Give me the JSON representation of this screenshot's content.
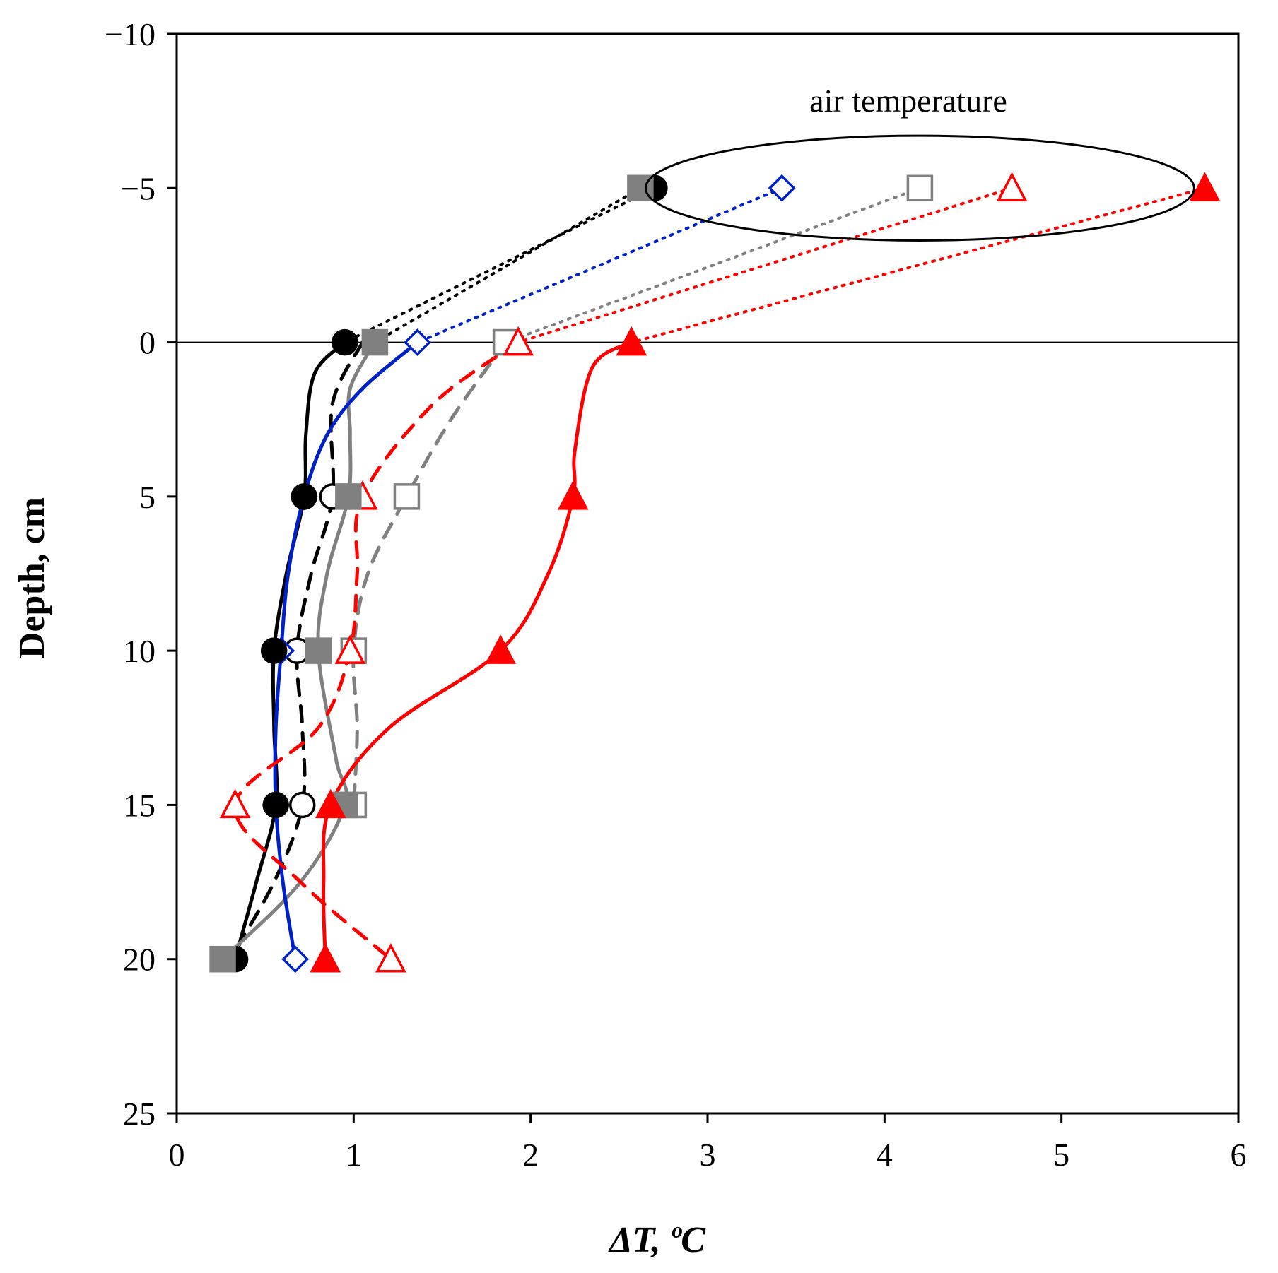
{
  "chart_data": {
    "type": "scatter",
    "title": "",
    "xlabel": "ΔT, ºC",
    "ylabel": "Depth, cm",
    "xlim": [
      0,
      6
    ],
    "ylim": [
      -10,
      25
    ],
    "y_inverted": true,
    "x_ticks": [
      "0",
      "1",
      "2",
      "3",
      "4",
      "5",
      "6"
    ],
    "y_ticks": [
      "−10",
      "−5",
      "0",
      "5",
      "10",
      "15",
      "20",
      "25"
    ],
    "reference_line_y": 0,
    "annotation": {
      "text": "air temperature",
      "ellipse_center": [
        4.2,
        -5
      ],
      "ellipse_radius": [
        1.55,
        1.7
      ]
    },
    "colors": {
      "black": "#000000",
      "gray": "#808080",
      "blue": "#0020c8",
      "red": "#ff0000"
    },
    "series": [
      {
        "name": "filled circle",
        "marker": "circle",
        "filled": true,
        "color": "#000000",
        "line": "solid",
        "points": [
          [
            2.7,
            -5
          ],
          [
            0.95,
            0
          ],
          [
            0.72,
            5
          ],
          [
            0.55,
            10
          ],
          [
            0.56,
            15
          ],
          [
            0.33,
            20
          ]
        ],
        "curve": [
          [
            0.95,
            0
          ],
          [
            0.78,
            1
          ],
          [
            0.73,
            3
          ],
          [
            0.72,
            5
          ],
          [
            0.62,
            7.5
          ],
          [
            0.55,
            10
          ],
          [
            0.55,
            12.5
          ],
          [
            0.56,
            15
          ],
          [
            0.45,
            17.5
          ],
          [
            0.33,
            20
          ]
        ]
      },
      {
        "name": "open circle",
        "marker": "circle",
        "filled": false,
        "color": "#000000",
        "line": "dashed",
        "points": [
          [
            0.88,
            5
          ],
          [
            0.68,
            10
          ],
          [
            0.71,
            15
          ]
        ],
        "curve": [
          [
            1.05,
            0
          ],
          [
            0.88,
            2
          ],
          [
            0.88,
            5
          ],
          [
            0.76,
            7.5
          ],
          [
            0.68,
            10
          ],
          [
            0.71,
            12.5
          ],
          [
            0.71,
            15
          ],
          [
            0.55,
            17.5
          ],
          [
            0.3,
            20
          ]
        ]
      },
      {
        "name": "filled square",
        "marker": "square",
        "filled": true,
        "color": "#808080",
        "line": "solid",
        "points": [
          [
            2.62,
            -5
          ],
          [
            1.12,
            0
          ],
          [
            0.97,
            5
          ],
          [
            0.8,
            10
          ],
          [
            0.95,
            15
          ],
          [
            0.26,
            20
          ]
        ],
        "curve": [
          [
            1.12,
            0
          ],
          [
            0.98,
            1.5
          ],
          [
            0.98,
            3
          ],
          [
            0.97,
            5
          ],
          [
            0.85,
            7.5
          ],
          [
            0.8,
            10
          ],
          [
            0.9,
            13.5
          ],
          [
            0.95,
            15
          ],
          [
            0.7,
            17.5
          ],
          [
            0.26,
            20
          ]
        ]
      },
      {
        "name": "open square",
        "marker": "square",
        "filled": false,
        "color": "#808080",
        "line": "dashed",
        "points": [
          [
            4.2,
            -5
          ],
          [
            1.86,
            0
          ],
          [
            1.3,
            5
          ],
          [
            1.0,
            10
          ],
          [
            1.0,
            15
          ]
        ],
        "curve": [
          [
            1.86,
            0
          ],
          [
            1.55,
            2.5
          ],
          [
            1.3,
            5
          ],
          [
            1.08,
            7.5
          ],
          [
            1.0,
            10
          ],
          [
            1.02,
            12.5
          ],
          [
            1.0,
            15
          ]
        ]
      },
      {
        "name": "open diamond",
        "marker": "diamond",
        "filled": false,
        "color": "#0020c8",
        "line": "solid",
        "points": [
          [
            3.42,
            -5
          ],
          [
            1.36,
            0
          ],
          [
            0.72,
            5
          ],
          [
            0.59,
            10
          ],
          [
            0.56,
            15
          ],
          [
            0.67,
            20
          ]
        ],
        "curve": [
          [
            1.36,
            0
          ],
          [
            1.05,
            1.5
          ],
          [
            0.85,
            3
          ],
          [
            0.72,
            5
          ],
          [
            0.63,
            7.5
          ],
          [
            0.59,
            10
          ],
          [
            0.56,
            12.5
          ],
          [
            0.56,
            15
          ],
          [
            0.6,
            17.5
          ],
          [
            0.67,
            20
          ]
        ]
      },
      {
        "name": "open triangle",
        "marker": "triangle",
        "filled": false,
        "color": "#ff0000",
        "line": "dashed",
        "points": [
          [
            4.72,
            -5
          ],
          [
            1.93,
            0
          ],
          [
            1.05,
            5
          ],
          [
            0.98,
            10
          ],
          [
            0.33,
            15
          ],
          [
            1.21,
            20
          ]
        ],
        "curve": [
          [
            1.93,
            0
          ],
          [
            1.45,
            2
          ],
          [
            1.05,
            5
          ],
          [
            1.02,
            7.5
          ],
          [
            0.98,
            10
          ],
          [
            0.8,
            12.5
          ],
          [
            0.33,
            15
          ],
          [
            0.7,
            17.5
          ],
          [
            1.21,
            20
          ]
        ]
      },
      {
        "name": "filled triangle",
        "marker": "triangle",
        "filled": true,
        "color": "#ff0000",
        "line": "solid",
        "points": [
          [
            5.81,
            -5
          ],
          [
            2.57,
            0
          ],
          [
            2.24,
            5
          ],
          [
            1.83,
            10
          ],
          [
            0.87,
            15
          ],
          [
            0.84,
            20
          ]
        ],
        "curve": [
          [
            2.57,
            0
          ],
          [
            2.35,
            0.8
          ],
          [
            2.25,
            3.5
          ],
          [
            2.24,
            5
          ],
          [
            2.1,
            7.5
          ],
          [
            1.83,
            10
          ],
          [
            1.2,
            12.5
          ],
          [
            0.87,
            15
          ],
          [
            0.83,
            17.5
          ],
          [
            0.84,
            20
          ]
        ]
      }
    ],
    "air_links": [
      {
        "color": "#000000",
        "from": [
          2.7,
          -5
        ],
        "to": [
          0.95,
          0
        ]
      },
      {
        "color": "#000000",
        "from": [
          2.62,
          -5
        ],
        "to": [
          1.12,
          0
        ]
      },
      {
        "color": "#0020c8",
        "from": [
          3.42,
          -5
        ],
        "to": [
          1.36,
          0
        ]
      },
      {
        "color": "#808080",
        "from": [
          4.2,
          -5
        ],
        "to": [
          1.86,
          0
        ]
      },
      {
        "color": "#ff0000",
        "from": [
          4.72,
          -5
        ],
        "to": [
          1.93,
          0
        ]
      },
      {
        "color": "#ff0000",
        "from": [
          5.81,
          -5
        ],
        "to": [
          2.57,
          0
        ]
      }
    ]
  }
}
